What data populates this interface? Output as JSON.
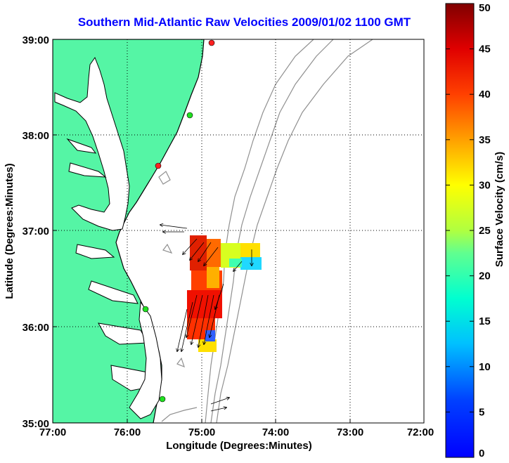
{
  "title": "Southern Mid-Atlantic Raw Velocities 2009/01/02 1100 GMT",
  "axes": {
    "xlabel": "Longitude (Degrees:Minutes)",
    "ylabel": "Latitude (Degrees:Minutes)",
    "x_ticks": [
      "77:00",
      "76:00",
      "75:00",
      "74:00",
      "73:00",
      "72:00"
    ],
    "y_ticks": [
      "39:00",
      "38:00",
      "37:00",
      "36:00",
      "35:00"
    ],
    "x_range": [
      -77,
      -72
    ],
    "y_range": [
      35,
      39
    ],
    "grid": "dotted"
  },
  "colorbar": {
    "label": "Surface Velocity (cm/s)",
    "ticks": [
      "0",
      "5",
      "10",
      "15",
      "20",
      "25",
      "30",
      "35",
      "40",
      "45",
      "50"
    ],
    "range": [
      0,
      50
    ],
    "colormap": "jet"
  },
  "colors": {
    "land": "#55f5a5",
    "coast": "#000000",
    "bathymetry": "#909090",
    "title": "#0000ff"
  },
  "stations": [
    {
      "lon": -74.87,
      "lat": 38.97,
      "status": "red"
    },
    {
      "lon": -75.15,
      "lat": 38.22,
      "status": "green"
    },
    {
      "lon": -75.58,
      "lat": 37.72,
      "status": "red"
    },
    {
      "lon": -75.75,
      "lat": 36.18,
      "status": "green"
    },
    {
      "lon": -75.48,
      "lat": 35.25,
      "status": "green"
    }
  ]
}
